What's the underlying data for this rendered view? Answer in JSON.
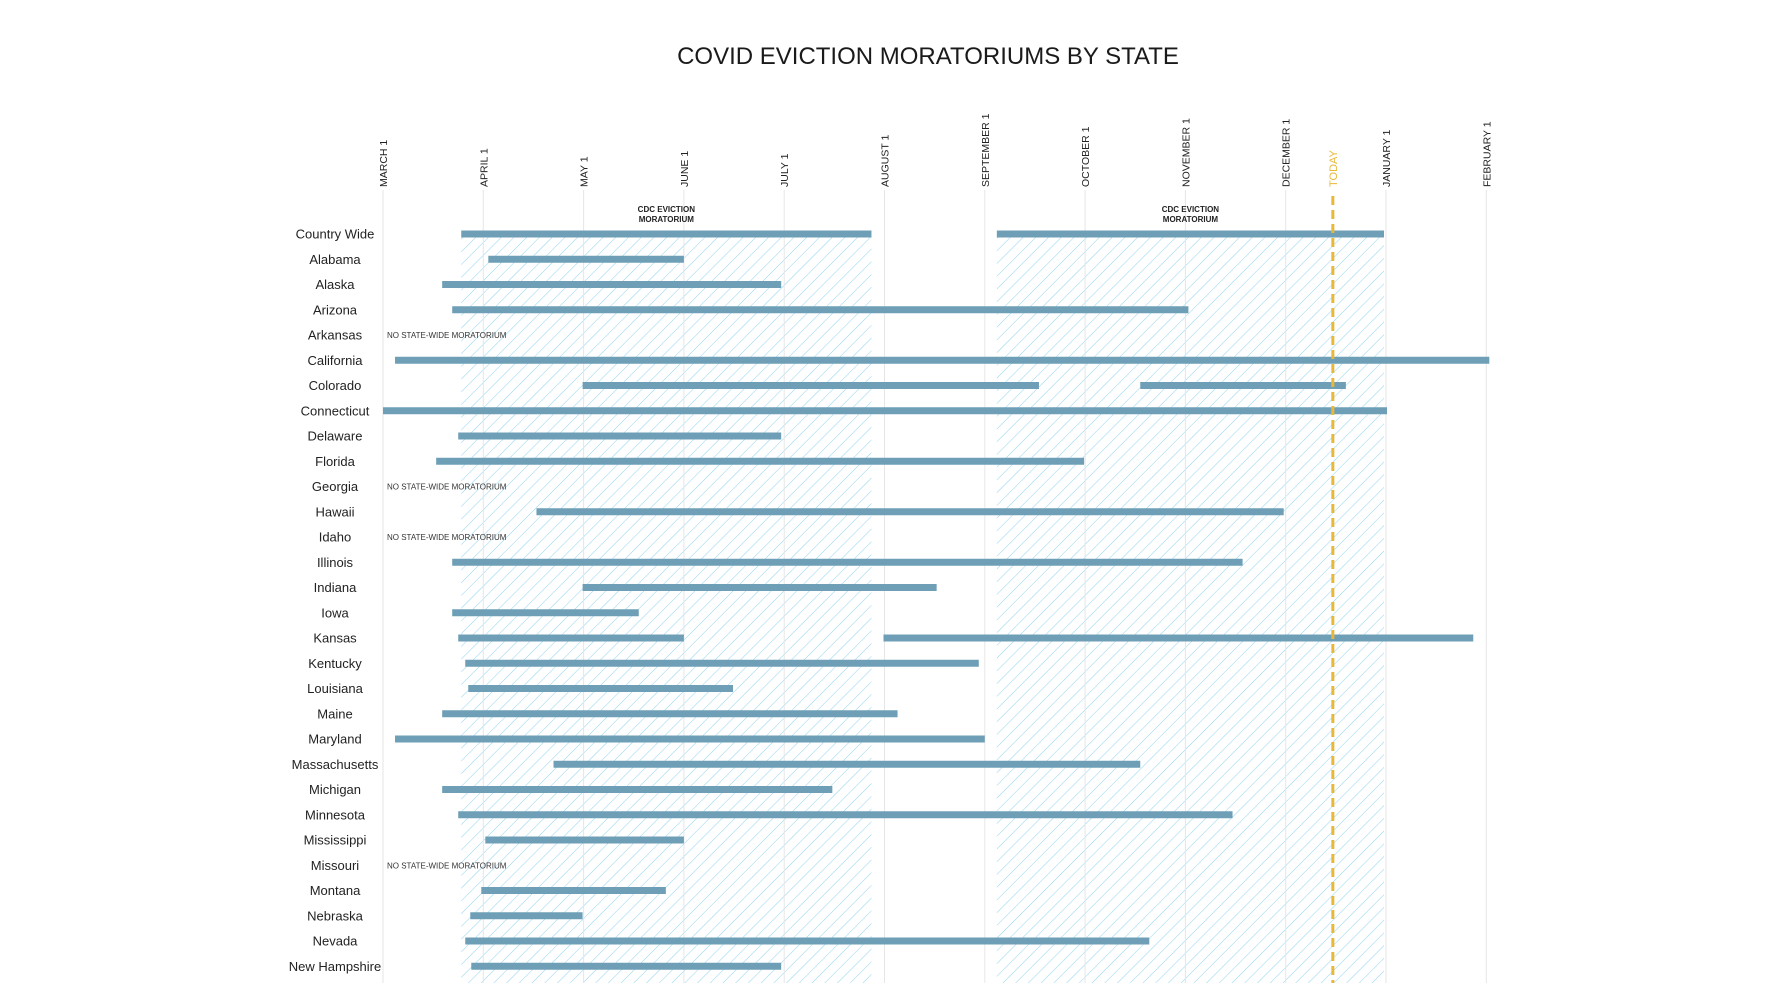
{
  "colors": {
    "bar": "#6e9fb6",
    "hatch": "#8fd3ee",
    "today": "#e8b838",
    "grid": "#e6e6e6"
  },
  "chart_data": {
    "type": "gantt",
    "title": "COVID EVICTION MORATORIUMS BY STATE",
    "x_axis": {
      "ticks": [
        "MARCH 1",
        "APRIL 1",
        "MAY 1",
        "JUNE 1",
        "JULY 1",
        "AUGUST 1",
        "SEPTEMBER 1",
        "OCTOBER 1",
        "NOVEMBER 1",
        "DECEMBER 1",
        "JANUARY 1",
        "FEBRUARY 1"
      ],
      "tick_positions_months": [
        0,
        1,
        2,
        3,
        4,
        5,
        6,
        7,
        8,
        9,
        10,
        11
      ]
    },
    "today": {
      "label": "TODAY",
      "value": 9.47
    },
    "cdc_periods": [
      {
        "label_line1": "CDC EVICTION",
        "label_line2": "MORATORIUM",
        "start": 0.78,
        "end": 4.87
      },
      {
        "label_line1": "CDC EVICTION",
        "label_line2": "MORATORIUM",
        "start": 6.12,
        "end": 9.98
      }
    ],
    "no_moratorium_note": "NO STATE-WIDE MORATORIUM",
    "rows": [
      {
        "name": "Country Wide",
        "spans": [
          [
            0.78,
            4.87
          ],
          [
            6.12,
            9.98
          ]
        ]
      },
      {
        "name": "Alabama",
        "spans": [
          [
            1.05,
            3.0
          ]
        ]
      },
      {
        "name": "Alaska",
        "spans": [
          [
            0.59,
            3.97
          ]
        ]
      },
      {
        "name": "Arizona",
        "spans": [
          [
            0.69,
            8.03
          ]
        ]
      },
      {
        "name": "Arkansas",
        "spans": [],
        "note": true
      },
      {
        "name": "California",
        "spans": [
          [
            0.12,
            11.03
          ]
        ]
      },
      {
        "name": "Colorado",
        "spans": [
          [
            1.99,
            6.54
          ],
          [
            7.55,
            9.6
          ]
        ]
      },
      {
        "name": "Connecticut",
        "spans": [
          [
            0.0,
            10.01
          ]
        ]
      },
      {
        "name": "Delaware",
        "spans": [
          [
            0.75,
            3.97
          ]
        ]
      },
      {
        "name": "Florida",
        "spans": [
          [
            0.53,
            6.99
          ]
        ]
      },
      {
        "name": "Georgia",
        "spans": [],
        "note": true
      },
      {
        "name": "Hawaii",
        "spans": [
          [
            1.53,
            8.98
          ]
        ]
      },
      {
        "name": "Idaho",
        "spans": [],
        "note": true
      },
      {
        "name": "Illinois",
        "spans": [
          [
            0.69,
            8.57
          ]
        ]
      },
      {
        "name": "Indiana",
        "spans": [
          [
            1.99,
            5.52
          ]
        ]
      },
      {
        "name": "Iowa",
        "spans": [
          [
            0.69,
            2.55
          ]
        ]
      },
      {
        "name": "Kansas",
        "spans": [
          [
            0.75,
            3.0
          ],
          [
            4.99,
            10.87
          ]
        ]
      },
      {
        "name": "Kentucky",
        "spans": [
          [
            0.82,
            5.94
          ]
        ]
      },
      {
        "name": "Louisiana",
        "spans": [
          [
            0.85,
            3.49
          ]
        ]
      },
      {
        "name": "Maine",
        "spans": [
          [
            0.59,
            5.13
          ]
        ]
      },
      {
        "name": "Maryland",
        "spans": [
          [
            0.12,
            6.0
          ]
        ]
      },
      {
        "name": "Massachusetts",
        "spans": [
          [
            1.7,
            7.55
          ]
        ]
      },
      {
        "name": "Michigan",
        "spans": [
          [
            0.59,
            4.48
          ]
        ]
      },
      {
        "name": "Minnesota",
        "spans": [
          [
            0.75,
            8.47
          ]
        ]
      },
      {
        "name": "Mississippi",
        "spans": [
          [
            1.02,
            3.0
          ]
        ]
      },
      {
        "name": "Missouri",
        "spans": [],
        "note": true
      },
      {
        "name": "Montana",
        "spans": [
          [
            0.98,
            2.82
          ]
        ]
      },
      {
        "name": "Nebraska",
        "spans": [
          [
            0.87,
            1.99
          ]
        ]
      },
      {
        "name": "Nevada",
        "spans": [
          [
            0.82,
            7.64
          ]
        ]
      },
      {
        "name": "New Hampshire",
        "spans": [
          [
            0.88,
            3.97
          ]
        ]
      }
    ]
  }
}
